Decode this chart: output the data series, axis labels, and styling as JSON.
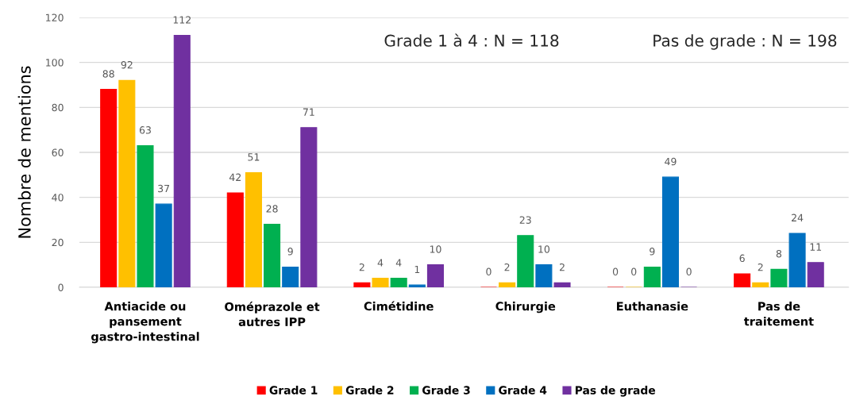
{
  "chart_data": {
    "type": "bar",
    "ylabel": "Nombre de mentions",
    "categories": [
      "Antiacide ou\npansement\ngastro-intestinal",
      "Oméprazole et\nautres IPP",
      "Cimétidine",
      "Chirurgie",
      "Euthanasie",
      "Pas de\ntraitement"
    ],
    "series": [
      {
        "name": "Grade 1",
        "color": "#ff0000",
        "values": [
          88,
          42,
          2,
          0,
          0,
          6
        ]
      },
      {
        "name": "Grade 2",
        "color": "#ffc000",
        "values": [
          92,
          51,
          4,
          2,
          0,
          2
        ]
      },
      {
        "name": "Grade 3",
        "color": "#00b050",
        "values": [
          63,
          28,
          4,
          23,
          9,
          8
        ]
      },
      {
        "name": "Grade 4",
        "color": "#0070c0",
        "values": [
          37,
          9,
          1,
          10,
          49,
          24
        ]
      },
      {
        "name": "Pas de grade",
        "color": "#7030a0",
        "values": [
          112,
          71,
          10,
          2,
          0,
          11
        ]
      }
    ],
    "ylim": [
      0,
      120
    ],
    "yticks": [
      0,
      20,
      40,
      60,
      80,
      100,
      120
    ],
    "grid": "y",
    "legend": "bottom",
    "data_labels": true,
    "annotations": [
      "Grade 1 à 4 : N = 118",
      "Pas de grade : N = 198"
    ]
  }
}
